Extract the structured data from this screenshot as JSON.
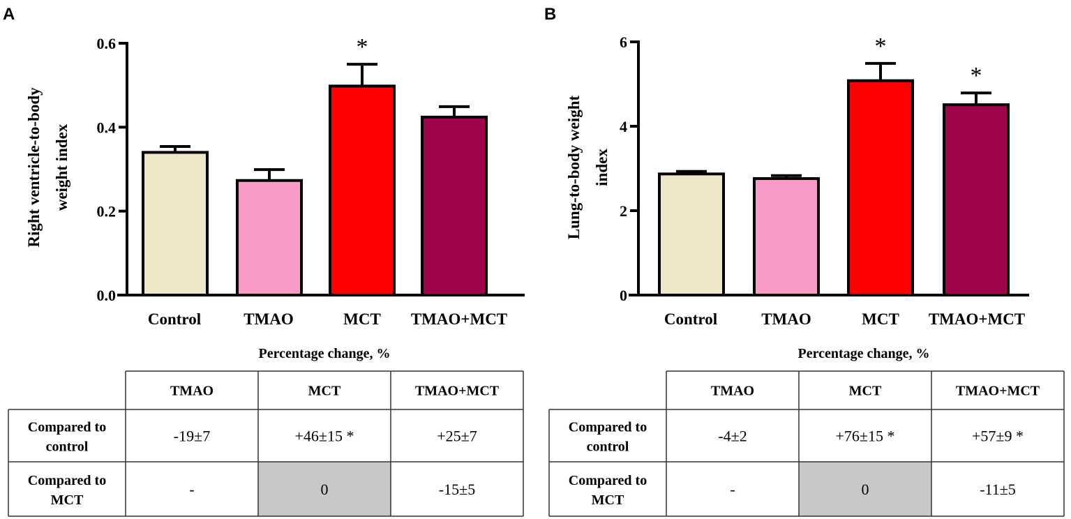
{
  "chart_data": [
    {
      "type": "bar",
      "panel": "A",
      "categories": [
        "Control",
        "TMAO",
        "MCT",
        "TMAO+MCT"
      ],
      "values": [
        0.34,
        0.273,
        0.498,
        0.424
      ],
      "errors": [
        0.014,
        0.026,
        0.052,
        0.025
      ],
      "significance": [
        "",
        "",
        "*",
        ""
      ],
      "colors": [
        "#ede6c8",
        "#f99bc8",
        "#ff0000",
        "#a0044a"
      ],
      "ylabel": "Right ventricle-to-body weight index",
      "ylabel_lines": [
        "Right ventricle-to-body",
        "weight index"
      ],
      "ylim": [
        0,
        0.6
      ],
      "yticks": [
        "0.0",
        "0.2",
        "0.4",
        "0.6"
      ],
      "ytick_values": [
        0,
        0.2,
        0.4,
        0.6
      ],
      "grid": false,
      "table": {
        "title": "Percentage change, %",
        "columns": [
          "TMAO",
          "MCT",
          "TMAO+MCT"
        ],
        "rows": [
          {
            "label": [
              "Compared to",
              "control"
            ],
            "cells": [
              "-19±7",
              "+46±15 *",
              "+25±7"
            ],
            "shaded": [
              false,
              false,
              false
            ]
          },
          {
            "label": [
              "Compared to",
              "MCT"
            ],
            "cells": [
              "-",
              "0",
              "-15±5"
            ],
            "shaded": [
              false,
              true,
              false
            ]
          }
        ]
      }
    },
    {
      "type": "bar",
      "panel": "B",
      "categories": [
        "Control",
        "TMAO",
        "MCT",
        "TMAO+MCT"
      ],
      "values": [
        2.87,
        2.76,
        5.08,
        4.51
      ],
      "errors": [
        0.06,
        0.07,
        0.41,
        0.28
      ],
      "significance": [
        "",
        "",
        "*",
        "*"
      ],
      "colors": [
        "#ede6c8",
        "#f99bc8",
        "#ff0000",
        "#a0044a"
      ],
      "ylabel": "Lung-to-body weight index",
      "ylabel_lines": [
        "Lung-to-body weight",
        "index"
      ],
      "ylim": [
        0,
        6
      ],
      "yticks": [
        "0",
        "2",
        "4",
        "6"
      ],
      "ytick_values": [
        0,
        2,
        4,
        6
      ],
      "grid": false,
      "table": {
        "title": "Percentage change, %",
        "columns": [
          "TMAO",
          "MCT",
          "TMAO+MCT"
        ],
        "rows": [
          {
            "label": [
              "Compared to",
              "control"
            ],
            "cells": [
              "-4±2",
              "+76±15 *",
              "+57±9 *"
            ],
            "shaded": [
              false,
              false,
              false
            ]
          },
          {
            "label": [
              "Compared to",
              "MCT"
            ],
            "cells": [
              "-",
              "0",
              "-11±5"
            ],
            "shaded": [
              false,
              true,
              false
            ]
          }
        ]
      }
    }
  ]
}
